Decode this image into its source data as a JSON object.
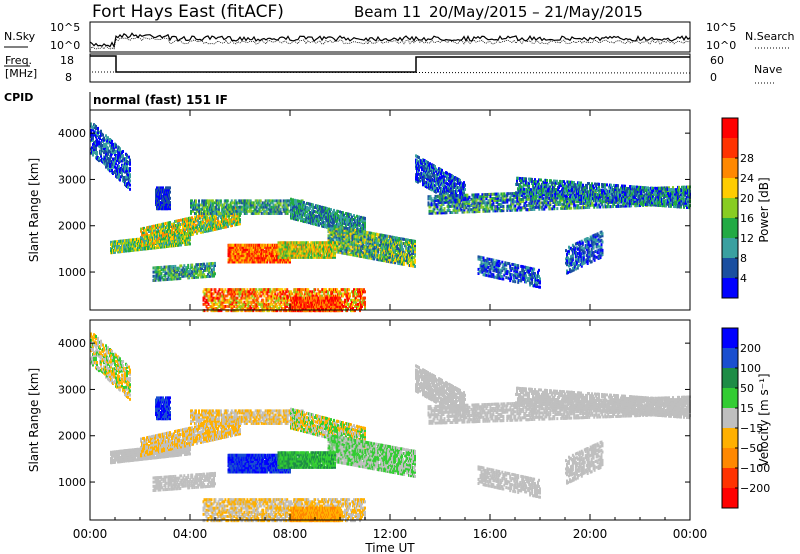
{
  "header": {
    "title": "Fort Hays East (fitACF)",
    "beam": "Beam 11",
    "dates": "20/May/2015 – 21/May/2015"
  },
  "top_panels": {
    "nsky_label": "N.Sky",
    "nsearch_label": "N.Search",
    "noise_ticks": [
      "10^5",
      "10^0"
    ],
    "freq_label_1": "Freq.",
    "freq_label_2": "[MHz]",
    "freq_ticks": [
      "18",
      "8"
    ],
    "nave_label": "Nave",
    "nave_ticks": [
      "60",
      "0"
    ],
    "cpid_label": "CPID",
    "cpid_text": "normal (fast) 151 IF"
  },
  "chart_data": [
    {
      "type": "heatmap",
      "name": "power",
      "ylabel": "Slant Range [km]",
      "yticks": [
        1000,
        2000,
        3000,
        4000
      ],
      "ylim": [
        180,
        4500
      ],
      "colorbar_label": "Power [dB]",
      "colorbar_ticks": [
        "4",
        "8",
        "12",
        "16",
        "20",
        "24",
        "28"
      ],
      "colors": [
        "#0000ff",
        "#1a4fa0",
        "#3aa0a0",
        "#22aa44",
        "#88cc22",
        "#ffcc00",
        "#ff8800",
        "#ff3300",
        "#ff0000"
      ]
    },
    {
      "type": "heatmap",
      "name": "velocity",
      "ylabel": "Slant Range [km]",
      "yticks": [
        1000,
        2000,
        3000,
        4000
      ],
      "ylim": [
        180,
        4500
      ],
      "colorbar_label": "Velocity [m s⁻¹]",
      "colorbar_ticks": [
        "200",
        "100",
        "50",
        "15",
        "−15",
        "−50",
        "−100",
        "−200"
      ],
      "colors": [
        "#0000ff",
        "#1a4fd0",
        "#1e8c46",
        "#33cc33",
        "#bfbfbf",
        "#ffb000",
        "#ff8800",
        "#ff3300",
        "#ff0000"
      ],
      "xticks": [
        "00:00",
        "04:00",
        "08:00",
        "12:00",
        "16:00",
        "20:00",
        "00:00"
      ],
      "xlabel": "Time UT"
    }
  ]
}
